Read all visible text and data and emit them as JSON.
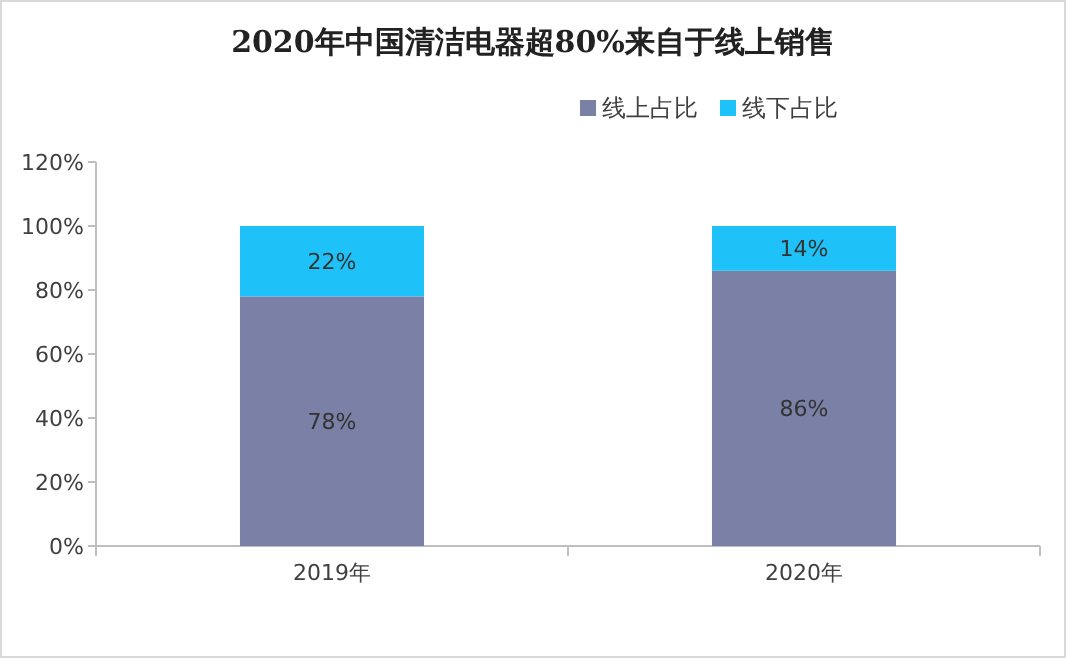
{
  "chart_data": {
    "type": "bar",
    "stacked": true,
    "title": "2020年中国清洁电器超80%来自于线上销售",
    "categories": [
      "2019年",
      "2020年"
    ],
    "series": [
      {
        "name": "线上占比",
        "color": "#7b80a6",
        "values": [
          78,
          86
        ],
        "value_labels": [
          "78%",
          "86%"
        ]
      },
      {
        "name": "线下占比",
        "color": "#1ec2f8",
        "values": [
          22,
          14
        ],
        "value_labels": [
          "22%",
          "14%"
        ]
      }
    ],
    "ylim": [
      0,
      120
    ],
    "yticks": [
      {
        "value": 0,
        "label": "0%"
      },
      {
        "value": 20,
        "label": "20%"
      },
      {
        "value": 40,
        "label": "40%"
      },
      {
        "value": 60,
        "label": "60%"
      },
      {
        "value": 80,
        "label": "80%"
      },
      {
        "value": 100,
        "label": "100%"
      },
      {
        "value": 120,
        "label": "120%"
      }
    ],
    "legend": "top right",
    "grid": false
  }
}
